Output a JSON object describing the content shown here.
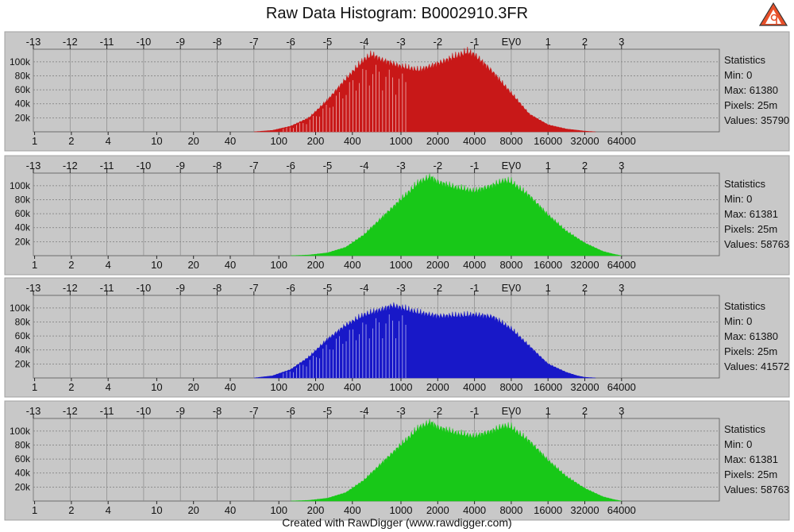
{
  "window": {
    "title": "Raw Data Histogram: B0002910.3FR",
    "footer": "Created with RawDigger (www.rawdigger.com)",
    "logo_text": "RawDigger"
  },
  "chart_data": [
    {
      "type": "area",
      "channel": "red",
      "color": "#c81818",
      "ev_ticks": [
        "-13",
        "-12",
        "-11",
        "-10",
        "-9",
        "-8",
        "-7",
        "-6",
        "-5",
        "-4",
        "-3",
        "-2",
        "-1",
        "EV0",
        "1",
        "2",
        "3"
      ],
      "value_ticks": [
        "1",
        "2",
        "4",
        "10",
        "20",
        "40",
        "100",
        "200",
        "400",
        "1000",
        "2000",
        "4000",
        "8000",
        "16000",
        "32000",
        "64000"
      ],
      "y_ticks": [
        "20k",
        "40k",
        "60k",
        "80k",
        "100k"
      ],
      "ylim": [
        0,
        118000
      ],
      "series": {
        "ev": [
          -7.0,
          -6.5,
          -6.0,
          -5.5,
          -5.0,
          -4.5,
          -4.2,
          -4.0,
          -3.8,
          -3.5,
          -3.0,
          -2.5,
          -2.0,
          -1.5,
          -1.2,
          -1.0,
          -0.5,
          0.0,
          0.5,
          1.0,
          1.5,
          2.0,
          2.3
        ],
        "count": [
          0,
          2000,
          8000,
          20000,
          45000,
          75000,
          92000,
          103000,
          110000,
          102000,
          93000,
          88000,
          97000,
          108000,
          114000,
          110000,
          85000,
          55000,
          25000,
          10000,
          4000,
          1000,
          0
        ]
      },
      "spikes": true,
      "statistics": {
        "heading": "Statistics",
        "min": "Min: 0",
        "max": "Max: 61380",
        "pixels": "Pixels: 25m",
        "values": "Values: 35790"
      }
    },
    {
      "type": "area",
      "channel": "green",
      "color": "#18c818",
      "ev_ticks": [
        "-13",
        "-12",
        "-11",
        "-10",
        "-9",
        "-8",
        "-7",
        "-6",
        "-5",
        "-4",
        "-3",
        "-2",
        "-1",
        "EV0",
        "1",
        "2",
        "3"
      ],
      "value_ticks": [
        "1",
        "2",
        "4",
        "10",
        "20",
        "40",
        "100",
        "200",
        "400",
        "1000",
        "2000",
        "4000",
        "8000",
        "16000",
        "32000",
        "64000"
      ],
      "y_ticks": [
        "20k",
        "40k",
        "60k",
        "80k",
        "100k"
      ],
      "ylim": [
        0,
        118000
      ],
      "series": {
        "ev": [
          -6.0,
          -5.5,
          -5.0,
          -4.5,
          -4.0,
          -3.5,
          -3.0,
          -2.7,
          -2.5,
          -2.2,
          -2.0,
          -1.5,
          -1.0,
          -0.5,
          -0.2,
          0.0,
          0.5,
          1.0,
          1.5,
          2.0,
          2.5,
          2.8,
          3.0
        ],
        "count": [
          0,
          1000,
          4000,
          12000,
          30000,
          55000,
          80000,
          95000,
          105000,
          112000,
          105000,
          97000,
          92000,
          100000,
          107000,
          105000,
          85000,
          58000,
          35000,
          18000,
          6000,
          2000,
          0
        ]
      },
      "spikes": false,
      "statistics": {
        "heading": "Statistics",
        "min": "Min: 0",
        "max": "Max: 61381",
        "pixels": "Pixels: 25m",
        "values": "Values: 58763"
      }
    },
    {
      "type": "area",
      "channel": "blue",
      "color": "#1818c8",
      "ev_ticks": [
        "-13",
        "-12",
        "-11",
        "-10",
        "-9",
        "-8",
        "-7",
        "-6",
        "-5",
        "-4",
        "-3",
        "-2",
        "-1",
        "EV0",
        "1",
        "2",
        "3"
      ],
      "value_ticks": [
        "1",
        "2",
        "4",
        "10",
        "20",
        "40",
        "100",
        "200",
        "400",
        "1000",
        "2000",
        "4000",
        "8000",
        "16000",
        "32000",
        "64000"
      ],
      "y_ticks": [
        "20k",
        "40k",
        "60k",
        "80k",
        "100k"
      ],
      "ylim": [
        0,
        118000
      ],
      "series": {
        "ev": [
          -7.0,
          -6.5,
          -6.0,
          -5.5,
          -5.0,
          -4.5,
          -4.0,
          -3.5,
          -3.2,
          -3.0,
          -2.5,
          -2.0,
          -1.5,
          -1.0,
          -0.5,
          0.0,
          0.5,
          1.0,
          1.5,
          1.8,
          2.0,
          2.3
        ],
        "count": [
          0,
          3000,
          12000,
          30000,
          55000,
          75000,
          90000,
          98000,
          103000,
          100000,
          93000,
          88000,
          89000,
          90000,
          87000,
          70000,
          45000,
          20000,
          8000,
          3000,
          1000,
          0
        ]
      },
      "spikes": true,
      "statistics": {
        "heading": "Statistics",
        "min": "Min: 0",
        "max": "Max: 61380",
        "pixels": "Pixels: 25m",
        "values": "Values: 41572"
      }
    },
    {
      "type": "area",
      "channel": "green2",
      "color": "#18c818",
      "ev_ticks": [
        "-13",
        "-12",
        "-11",
        "-10",
        "-9",
        "-8",
        "-7",
        "-6",
        "-5",
        "-4",
        "-3",
        "-2",
        "-1",
        "EV0",
        "1",
        "2",
        "3"
      ],
      "value_ticks": [
        "1",
        "2",
        "4",
        "10",
        "20",
        "40",
        "100",
        "200",
        "400",
        "1000",
        "2000",
        "4000",
        "8000",
        "16000",
        "32000",
        "64000"
      ],
      "y_ticks": [
        "20k",
        "40k",
        "60k",
        "80k",
        "100k"
      ],
      "ylim": [
        0,
        118000
      ],
      "series": {
        "ev": [
          -6.0,
          -5.5,
          -5.0,
          -4.5,
          -4.0,
          -3.5,
          -3.0,
          -2.7,
          -2.5,
          -2.2,
          -2.0,
          -1.5,
          -1.0,
          -0.5,
          -0.2,
          0.0,
          0.5,
          1.0,
          1.5,
          2.0,
          2.5,
          2.8,
          3.0
        ],
        "count": [
          0,
          1000,
          4000,
          12000,
          30000,
          55000,
          80000,
          95000,
          105000,
          112000,
          105000,
          97000,
          92000,
          100000,
          107000,
          105000,
          85000,
          58000,
          35000,
          18000,
          6000,
          2000,
          0
        ]
      },
      "spikes": false,
      "statistics": {
        "heading": "Statistics",
        "min": "Min: 0",
        "max": "Max: 61381",
        "pixels": "Pixels: 25m",
        "values": "Values: 58763"
      }
    }
  ]
}
